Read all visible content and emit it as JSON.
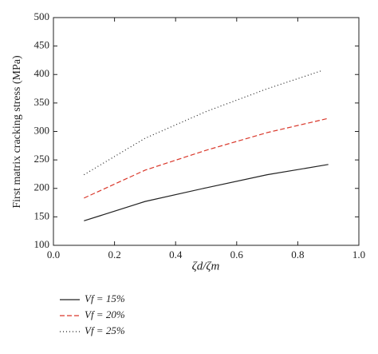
{
  "chart_data": {
    "type": "line",
    "x_label": "ζd/ζm",
    "y_label": "First matrix cracking stress (MPa)",
    "xlim": [
      0,
      1
    ],
    "ylim": [
      100,
      500
    ],
    "xticks": [
      {
        "value": 0,
        "label": "0.0"
      },
      0.2,
      0.4,
      0.6,
      0.8,
      {
        "value": 1,
        "label": "1.0"
      }
    ],
    "yticks": [
      100,
      150,
      200,
      250,
      300,
      350,
      400,
      450,
      500
    ],
    "legend": "bottom-left",
    "series": [
      {
        "name": "Vf = 15%",
        "color": "#222222",
        "linestyle": "solid",
        "x": [
          0.1,
          0.3,
          0.5,
          0.7,
          0.9
        ],
        "values": [
          143,
          177,
          201,
          224,
          242
        ]
      },
      {
        "name": "Vf = 20%",
        "color": "#d9372a",
        "linestyle": "dashed",
        "x": [
          0.1,
          0.3,
          0.5,
          0.7,
          0.9
        ],
        "values": [
          183,
          232,
          267,
          298,
          323
        ]
      },
      {
        "name": "Vf = 25%",
        "color": "#222222",
        "linestyle": "dotted",
        "x": [
          0.1,
          0.3,
          0.5,
          0.7,
          0.88
        ],
        "values": [
          224,
          288,
          335,
          375,
          407
        ]
      }
    ]
  }
}
